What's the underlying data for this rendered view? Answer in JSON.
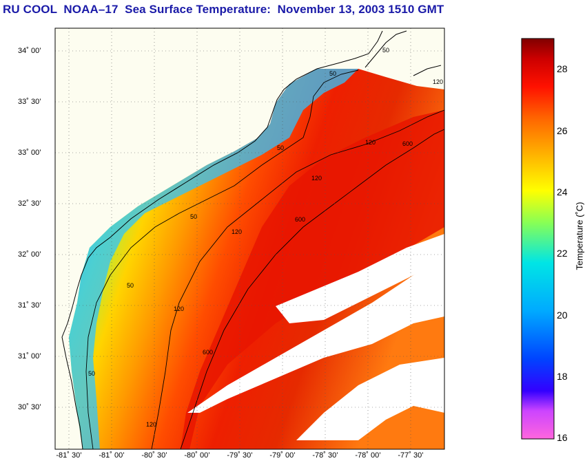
{
  "title": "RU COOL  NOAA–17  Sea Surface Temperature:  November 13, 2003 1510 GMT",
  "map": {
    "lat_labels": [
      "34˚ 00’",
      "33˚ 30’",
      "33˚ 00’",
      "32˚ 30’",
      "32˚ 00’",
      "31˚ 30’",
      "31˚ 00’",
      "30˚ 30’"
    ],
    "lon_labels": [
      "-81˚ 30’",
      "-81˚ 00’",
      "-80˚ 30’",
      "-80˚ 00’",
      "-79˚ 30’",
      "-79˚ 00’",
      "-78˚ 30’",
      "-78˚ 00’",
      "-77˚ 30’"
    ],
    "contour_labels": [
      "50",
      "50",
      "50",
      "50",
      "50",
      "50",
      "120",
      "120",
      "120",
      "120",
      "120",
      "120",
      "600",
      "600",
      "600"
    ],
    "colors": {
      "land": "#fdfdf0",
      "coast": "#000000",
      "grid": "#555555",
      "cloud": "#ffffff"
    }
  },
  "colorbar": {
    "label": "Temperature (˚C)",
    "min": 16,
    "max": 29,
    "ticks": [
      "16",
      "18",
      "20",
      "22",
      "24",
      "26",
      "28"
    ],
    "stops": [
      "#ff66cc",
      "#cc33ff",
      "#0000ff",
      "#0099ff",
      "#00e5ff",
      "#7fff66",
      "#ffff00",
      "#ff9900",
      "#ff3300",
      "#ee0000",
      "#7a0000"
    ]
  }
}
